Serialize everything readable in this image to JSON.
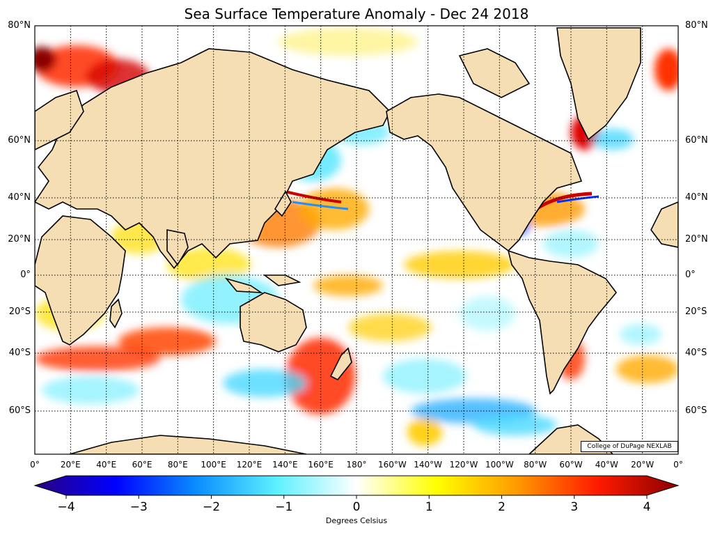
{
  "title": "Sea Surface Temperature Anomaly - Dec 24 2018",
  "lat_labels": [
    "80°N",
    "60°N",
    "40°N",
    "20°N",
    "0°",
    "20°S",
    "40°S",
    "60°S"
  ],
  "lon_labels": [
    "0°",
    "20°E",
    "40°E",
    "60°E",
    "80°E",
    "100°E",
    "120°E",
    "140°E",
    "160°E",
    "180°",
    "160°W",
    "140°W",
    "120°W",
    "100°W",
    "80°W",
    "60°W",
    "40°W",
    "20°W",
    "0°"
  ],
  "colorbar": {
    "ticks": [
      "−4",
      "−3",
      "−2",
      "−1",
      "0",
      "1",
      "2",
      "3",
      "4"
    ],
    "title": "Degrees Celsius",
    "range": [
      -4,
      4
    ],
    "stops": [
      "#2a0080",
      "#0000ff",
      "#0a8cff",
      "#5cf0ff",
      "#ffffff",
      "#ffff00",
      "#ff9900",
      "#ff1a00",
      "#8b0000"
    ]
  },
  "credit": "College of DuPage NEXLAB",
  "colors": {
    "land": "#f5deb3",
    "coast": "#000000",
    "ocean_neutral": "#ffffff"
  }
}
